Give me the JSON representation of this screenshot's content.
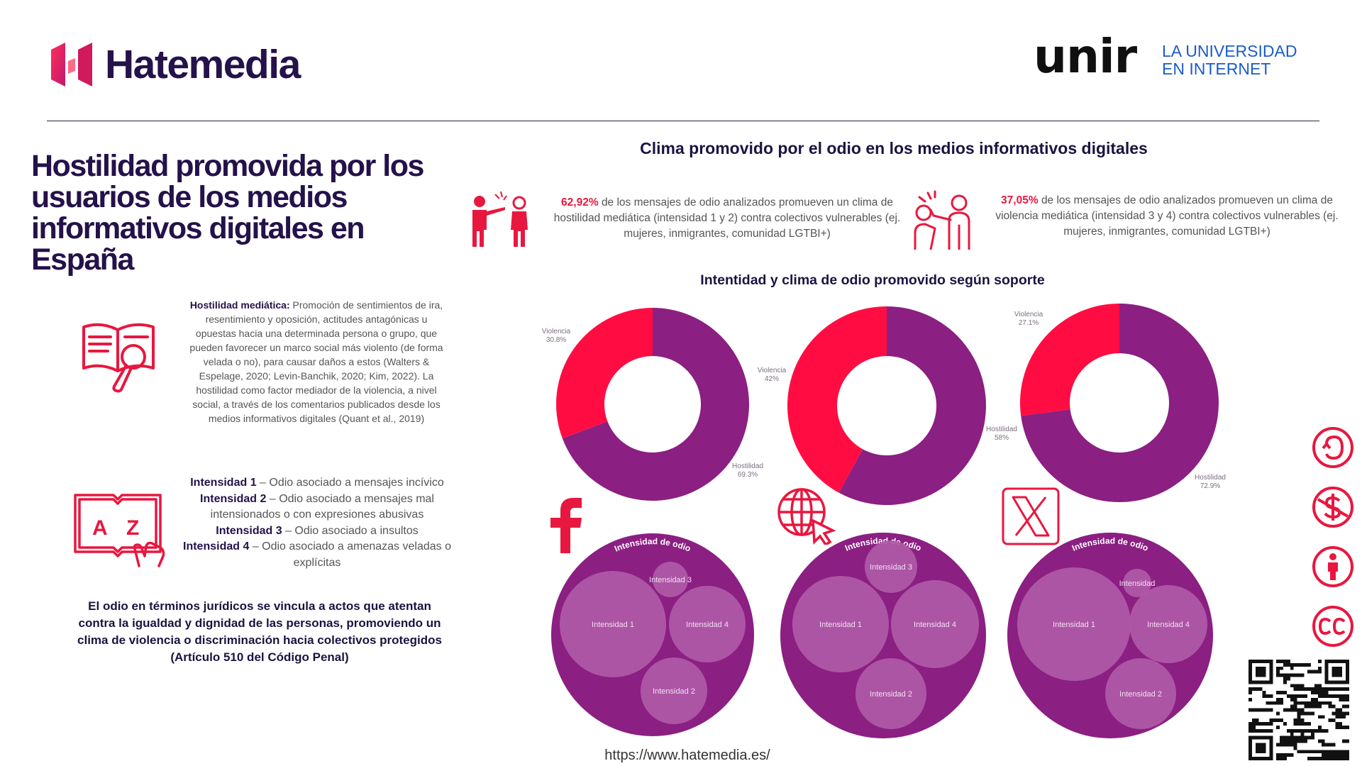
{
  "header": {
    "brand": "Hatemedia",
    "unir_logo": "unir",
    "unir_tagline_line1": "LA UNIVERSIDAD",
    "unir_tagline_line2": "EN INTERNET"
  },
  "left": {
    "title": "Hostilidad promovida por los usuarios de los medios informativos digitales en España",
    "definition_term": "Hostilidad mediática:",
    "definition_text": "Promoción de sentimientos de ira, resentimiento y oposición, actitudes antagónicas u opuestas hacia una determinada persona o grupo, que pueden favorecer un marco social más violento (de forma velada o no), para causar daños a estos (Walters & Espelage, 2020; Levin-Banchik, 2020; Kim, 2022). La hostilidad como factor mediador de la violencia, a nivel social, a través de los comentarios publicados desde los medios informativos digitales (Quant et al., 2019)",
    "intensities": [
      {
        "term": "Intensidad 1",
        "desc": "– Odio asociado a mensajes incívico"
      },
      {
        "term": "Intensidad 2",
        "desc": "– Odio asociado a mensajes mal intensionados o con expresiones abusivas"
      },
      {
        "term": "Intensidad 3",
        "desc": "– Odio asociado a insultos"
      },
      {
        "term": "Intensidad 4",
        "desc": "– Odio asociado a amenazas veladas o explícitas"
      }
    ],
    "legal_text": "El odio en términos jurídicos se vincula a actos que atentan contra la igualdad y dignidad de las personas, promoviendo un clima de violencia o discriminación hacia colectivos protegidos",
    "legal_ref": "(Artículo 510 del Código Penal)"
  },
  "right": {
    "clima_title": "Clima promovido por el odio en los medios informativos digitales",
    "stat1_pct": "62,92%",
    "stat1_text": "de los mensajes de odio analizados promueven un clima de hostilidad mediática (intensidad 1 y 2) contra colectivos vulnerables (ej. mujeres, inmigrantes, comunidad LGTBI+)",
    "stat2_pct": "37,05%",
    "stat2_text": "de los mensajes de odio analizados promueven un clima de violencia mediática (intensidad 3 y 4) contra colectivos vulnerables (ej. mujeres, inmigrantes, comunidad LGTBI+)",
    "charts_title": "Intentidad y clima de odio promovido según soporte"
  },
  "chart_data": [
    {
      "type": "pie",
      "variant": "donut",
      "platform": "facebook",
      "slices": [
        {
          "label": "Violencia",
          "value_label": "30.8%",
          "value": 30.8,
          "color": "#ff0d42"
        },
        {
          "label": "Hostilidad",
          "value_label": "69.3%",
          "value": 69.3,
          "color": "#8b1f82"
        }
      ]
    },
    {
      "type": "pie",
      "variant": "donut",
      "platform": "web",
      "slices": [
        {
          "label": "Violencia",
          "value_label": "42%",
          "value": 42,
          "color": "#ff0d42"
        },
        {
          "label": "Hostilidad",
          "value_label": "58%",
          "value": 58,
          "color": "#8b1f82"
        }
      ]
    },
    {
      "type": "pie",
      "variant": "donut",
      "platform": "x",
      "slices": [
        {
          "label": "Violencia",
          "value_label": "27.1%",
          "value": 27.1,
          "color": "#ff0d42"
        },
        {
          "label": "Hostilidad",
          "value_label": "72.9%",
          "value": 72.9,
          "color": "#8b1f82"
        }
      ]
    },
    {
      "type": "bubble",
      "platform": "facebook",
      "title": "Intensidad de odio",
      "bubbles": [
        {
          "label": "Intensidad 1",
          "value": 100
        },
        {
          "label": "Intensidad 4",
          "value": 55
        },
        {
          "label": "Intensidad 2",
          "value": 42
        },
        {
          "label": "Intensidad 3",
          "value": 11
        }
      ]
    },
    {
      "type": "bubble",
      "platform": "web",
      "title": "Intensidad de odio",
      "bubbles": [
        {
          "label": "Intensidad 1",
          "value": 100
        },
        {
          "label": "Intensidad 4",
          "value": 83
        },
        {
          "label": "Intensidad 2",
          "value": 56
        },
        {
          "label": "Intensidad 3",
          "value": 30
        }
      ]
    },
    {
      "type": "bubble",
      "platform": "x",
      "title": "Intensidad de odio",
      "bubbles": [
        {
          "label": "Intensidad 1",
          "value": 100
        },
        {
          "label": "Intensidad 4",
          "value": 50
        },
        {
          "label": "Intensidad 2",
          "value": 55
        },
        {
          "label": "Intensidad",
          "value": 6
        }
      ]
    }
  ],
  "footer": {
    "url": "https://www.hatemedia.es/"
  },
  "icons": [
    "hatemedia-logo-icon",
    "book-search-icon",
    "dictionary-icon",
    "pointing-people-icon",
    "violence-people-icon",
    "facebook-icon",
    "web-cursor-icon",
    "x-icon",
    "cc-share-icon",
    "cc-noncommercial-icon",
    "cc-attribution-icon",
    "cc-icon",
    "qr-code"
  ],
  "colors": {
    "violencia": "#ff0d42",
    "hostilidad": "#8b1f82",
    "bubble_bg": "#8b1f82",
    "bubble": "#b05aa8",
    "icon_red": "#e8173f",
    "navy": "#24124a"
  }
}
